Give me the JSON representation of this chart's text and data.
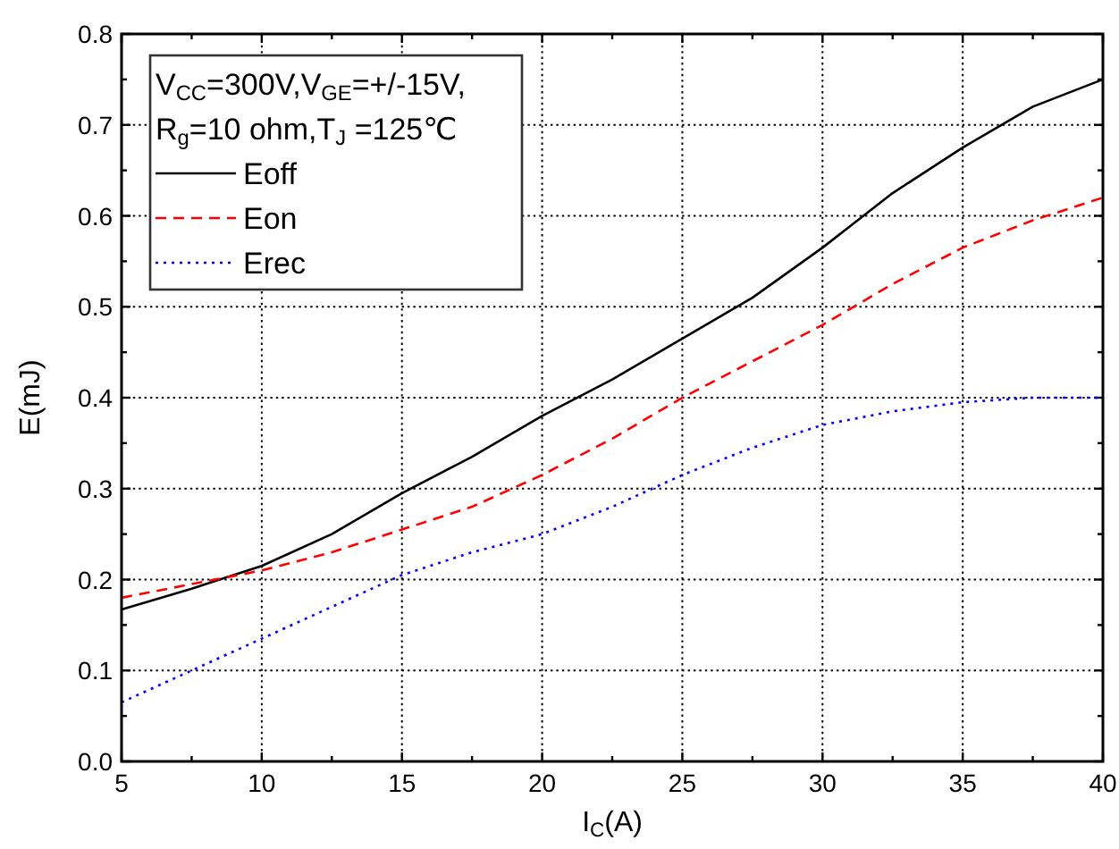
{
  "chart_data": {
    "type": "line",
    "xlabel": "I$_{C}$(A)",
    "ylabel": "E(mJ)",
    "legend_title": "V$_{CC}$=300V,V$_{GE}$=+/-15V,\nR$_{g}$=10 ohm,T$_{J}$ =125℃",
    "x": [
      5,
      7.5,
      10,
      12.5,
      15,
      17.5,
      20,
      22.5,
      25,
      27.5,
      30,
      32.5,
      35,
      37.5,
      40
    ],
    "series": [
      {
        "name": "Eoff",
        "color": "#000000",
        "line_style": "solid",
        "values": [
          0.167,
          0.19,
          0.215,
          0.25,
          0.295,
          0.335,
          0.38,
          0.42,
          0.465,
          0.51,
          0.565,
          0.625,
          0.675,
          0.72,
          0.75
        ]
      },
      {
        "name": "Eon",
        "color": "#ff0000",
        "line_style": "dashed",
        "values": [
          0.18,
          0.195,
          0.21,
          0.23,
          0.255,
          0.28,
          0.315,
          0.355,
          0.4,
          0.44,
          0.48,
          0.525,
          0.565,
          0.595,
          0.62
        ]
      },
      {
        "name": "Erec",
        "color": "#0000ff",
        "line_style": "dotted",
        "values": [
          0.065,
          0.1,
          0.135,
          0.17,
          0.205,
          0.23,
          0.25,
          0.28,
          0.315,
          0.345,
          0.37,
          0.385,
          0.395,
          0.4,
          0.4
        ]
      }
    ],
    "xlim": [
      5,
      40
    ],
    "xticks": [
      5,
      10,
      15,
      20,
      25,
      30,
      35,
      40
    ],
    "ylim": [
      0.0,
      0.8
    ],
    "yticks": [
      {
        "value": 0,
        "label": "0.0"
      },
      0.1,
      0.2,
      0.3,
      0.4,
      0.5,
      0.6,
      0.7,
      0.8
    ],
    "grid": true,
    "legend": "top left"
  }
}
